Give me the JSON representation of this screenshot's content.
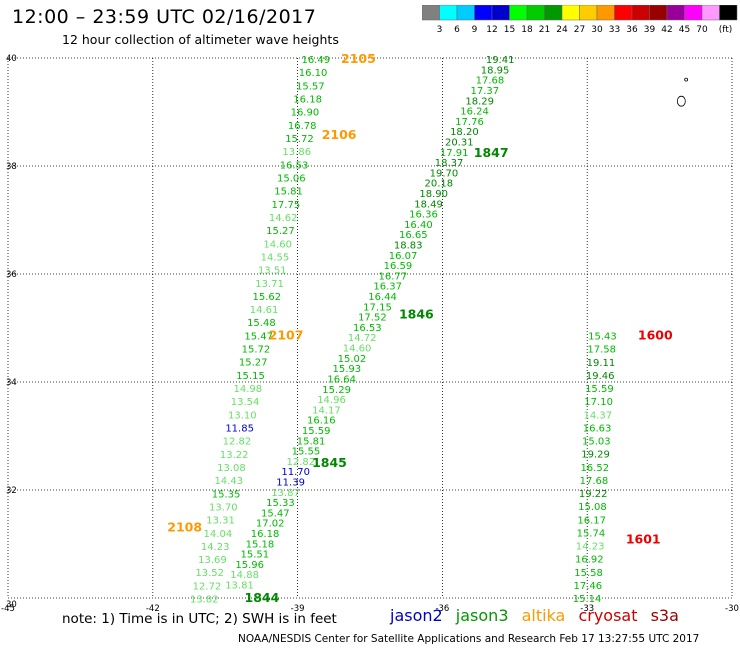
{
  "header": {
    "title": "12:00 – 23:59 UTC 02/16/2017",
    "subtitle": "12 hour collection of altimeter wave heights"
  },
  "legend": {
    "colors": [
      "#808080",
      "#00ffff",
      "#00ccff",
      "#0000ff",
      "#0000cc",
      "#00ff00",
      "#00cc00",
      "#009900",
      "#ffff00",
      "#ffcc00",
      "#ff9900",
      "#ff0000",
      "#cc0000",
      "#990000",
      "#990099",
      "#ff00ff",
      "#ff99ff",
      "#000000"
    ],
    "labels": [
      "3",
      "6",
      "9",
      "12",
      "15",
      "18",
      "21",
      "24",
      "27",
      "30",
      "33",
      "36",
      "39",
      "42",
      "45",
      "70",
      "(ft)"
    ]
  },
  "footer": {
    "note": "note:  1) Time is in UTC;  2) SWH is in feet",
    "credit": "NOAA/NESDIS Center for Satellite Applications and Research    Feb 17 13:27:55 UTC 2017",
    "satellites": [
      {
        "name": "jason2",
        "color": "#0000cc"
      },
      {
        "name": "jason3",
        "color": "#009900"
      },
      {
        "name": "altika",
        "color": "#ff9900"
      },
      {
        "name": "cryosat",
        "color": "#cc0000"
      },
      {
        "name": "s3a",
        "color": "#990000"
      }
    ]
  },
  "chart_data": {
    "type": "scatter",
    "xlim": [
      -45,
      -30
    ],
    "ylim": [
      30,
      40
    ],
    "x_ticks": [
      "-45",
      "-42",
      "-39",
      "-36",
      "-33",
      "-30"
    ],
    "y_ticks": [
      "30",
      "32",
      "34",
      "36",
      "38",
      "40"
    ],
    "grid": true,
    "series": [
      {
        "name": "altika",
        "color_key": "ALT",
        "time_labels": [
          {
            "text": "2105",
            "x": -38.1,
            "y": 39.98
          },
          {
            "text": "2106",
            "x": -38.5,
            "y": 38.57
          },
          {
            "text": "2107",
            "x": -39.6,
            "y": 34.86
          },
          {
            "text": "2108",
            "x": -41.7,
            "y": 31.31
          }
        ],
        "values": [
          "16.49",
          "16.10",
          "15.57",
          "16.18",
          "16.90",
          "16.78",
          "15.72",
          "13.86",
          "16.53",
          "15.06",
          "15.81",
          "17.75",
          "14.62",
          "15.27",
          "14.60",
          "14.55",
          "13.51",
          "13.71",
          "15.62",
          "14.61",
          "15.48",
          "15.47",
          "15.72",
          "15.27",
          "15.15",
          "14.98",
          "13.54",
          "13.10",
          "11.85",
          "12.82",
          "13.22",
          "13.08",
          "14.43",
          "15.35",
          "13.70",
          "13.31",
          "14.04",
          "14.23",
          "13.69",
          "13.52",
          "12.72",
          "13.82"
        ],
        "start": [
          -38.92,
          39.98
        ],
        "end": [
          -41.23,
          29.99
        ]
      },
      {
        "name": "jason3",
        "color_key": "J3",
        "time_labels": [
          {
            "text": "1847",
            "x": -35.35,
            "y": 38.24
          },
          {
            "text": "1846",
            "x": -36.9,
            "y": 35.25
          },
          {
            "text": "1845",
            "x": -38.7,
            "y": 32.5
          },
          {
            "text": "1844",
            "x": -40.1,
            "y": 30.0
          }
        ],
        "values": [
          "19.41",
          "18.95",
          "17.68",
          "17.37",
          "18.29",
          "16.24",
          "17.76",
          "18.20",
          "20.31",
          "17.91",
          "18.37",
          "19.70",
          "20.18",
          "18.90",
          "18.49",
          "16.36",
          "16.40",
          "16.65",
          "18.83",
          "16.07",
          "16.59",
          "16.77",
          "16.37",
          "16.44",
          "17.15",
          "17.52",
          "16.53",
          "14.72",
          "14.60",
          "15.02",
          "15.93",
          "16.64",
          "15.29",
          "14.96",
          "14.17",
          "16.16",
          "15.59",
          "15.81",
          "15.55",
          "12.82",
          "11.70",
          "11.39",
          "13.87",
          "15.33",
          "15.47",
          "17.02",
          "16.18",
          "15.18",
          "15.51",
          "15.96",
          "14.88",
          "13.81"
        ],
        "start": [
          -35.1,
          39.98
        ],
        "end": [
          -40.5,
          30.25
        ]
      },
      {
        "name": "cryosat",
        "color_key": "CRY",
        "time_labels": [
          {
            "text": "1600",
            "x": -31.95,
            "y": 34.86
          },
          {
            "text": "1601",
            "x": -32.2,
            "y": 31.08
          }
        ],
        "values": [
          "15.43",
          "17.58",
          "19.11",
          "19.46",
          "15.59",
          "17.10",
          "14.37",
          "16.63",
          "15.03",
          "19.29",
          "16.52",
          "17.68",
          "19.22",
          "15.08",
          "16.17",
          "15.74",
          "14.23",
          "16.92",
          "15.58",
          "17.46",
          "15.14"
        ],
        "start": [
          -32.98,
          34.86
        ],
        "end": [
          -33.3,
          30.0
        ]
      }
    ],
    "point_labels": []
  }
}
